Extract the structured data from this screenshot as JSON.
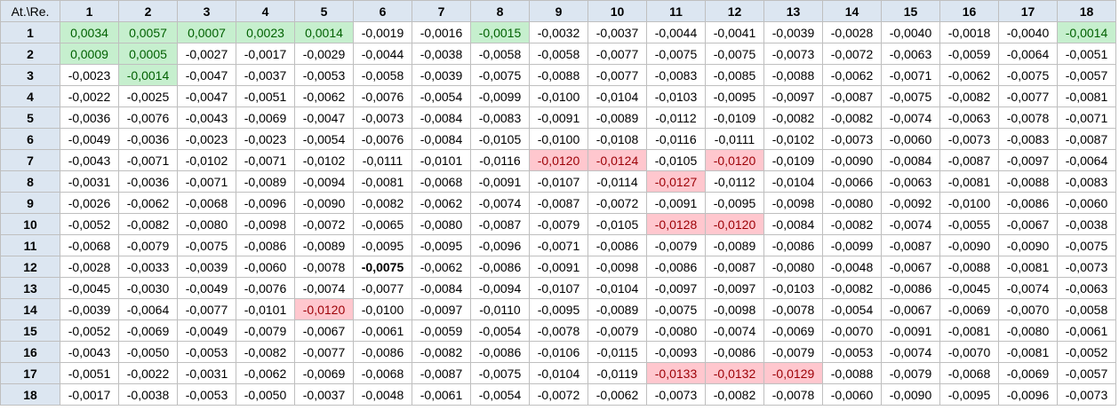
{
  "corner_label": "At.\\Re.",
  "colors": {
    "header_bg": "#dce6f1",
    "positive_bg": "#c6efce",
    "positive_text": "#006100",
    "negative_bg": "#ffc7ce",
    "negative_text": "#9c0006",
    "border": "#bfbfbf"
  },
  "columns": [
    "1",
    "2",
    "3",
    "4",
    "5",
    "6",
    "7",
    "8",
    "9",
    "10",
    "11",
    "12",
    "13",
    "14",
    "15",
    "16",
    "17",
    "18"
  ],
  "rows": [
    {
      "label": "1",
      "cells": [
        {
          "v": "0,0034",
          "h": "pos"
        },
        {
          "v": "0,0057",
          "h": "pos"
        },
        {
          "v": "0,0007",
          "h": "pos"
        },
        {
          "v": "0,0023",
          "h": "pos"
        },
        {
          "v": "0,0014",
          "h": "pos"
        },
        {
          "v": "-0,0019"
        },
        {
          "v": "-0,0016"
        },
        {
          "v": "-0,0015",
          "h": "pos"
        },
        {
          "v": "-0,0032"
        },
        {
          "v": "-0,0037"
        },
        {
          "v": "-0,0044"
        },
        {
          "v": "-0,0041"
        },
        {
          "v": "-0,0039"
        },
        {
          "v": "-0,0028"
        },
        {
          "v": "-0,0040"
        },
        {
          "v": "-0,0018"
        },
        {
          "v": "-0,0040"
        },
        {
          "v": "-0,0014",
          "h": "pos"
        }
      ]
    },
    {
      "label": "2",
      "cells": [
        {
          "v": "0,0009",
          "h": "pos"
        },
        {
          "v": "0,0005",
          "h": "pos"
        },
        {
          "v": "-0,0027"
        },
        {
          "v": "-0,0017"
        },
        {
          "v": "-0,0029"
        },
        {
          "v": "-0,0044"
        },
        {
          "v": "-0,0038"
        },
        {
          "v": "-0,0058"
        },
        {
          "v": "-0,0058"
        },
        {
          "v": "-0,0077"
        },
        {
          "v": "-0,0075"
        },
        {
          "v": "-0,0075"
        },
        {
          "v": "-0,0073"
        },
        {
          "v": "-0,0072"
        },
        {
          "v": "-0,0063"
        },
        {
          "v": "-0,0059"
        },
        {
          "v": "-0,0064"
        },
        {
          "v": "-0,0051"
        }
      ]
    },
    {
      "label": "3",
      "cells": [
        {
          "v": "-0,0023"
        },
        {
          "v": "-0,0014",
          "h": "pos"
        },
        {
          "v": "-0,0047"
        },
        {
          "v": "-0,0037"
        },
        {
          "v": "-0,0053"
        },
        {
          "v": "-0,0058"
        },
        {
          "v": "-0,0039"
        },
        {
          "v": "-0,0075"
        },
        {
          "v": "-0,0088"
        },
        {
          "v": "-0,0077"
        },
        {
          "v": "-0,0083"
        },
        {
          "v": "-0,0085"
        },
        {
          "v": "-0,0088"
        },
        {
          "v": "-0,0062"
        },
        {
          "v": "-0,0071"
        },
        {
          "v": "-0,0062"
        },
        {
          "v": "-0,0075"
        },
        {
          "v": "-0,0057"
        }
      ]
    },
    {
      "label": "4",
      "cells": [
        {
          "v": "-0,0022"
        },
        {
          "v": "-0,0025"
        },
        {
          "v": "-0,0047"
        },
        {
          "v": "-0,0051"
        },
        {
          "v": "-0,0062"
        },
        {
          "v": "-0,0076"
        },
        {
          "v": "-0,0054"
        },
        {
          "v": "-0,0099"
        },
        {
          "v": "-0,0100"
        },
        {
          "v": "-0,0104"
        },
        {
          "v": "-0,0103"
        },
        {
          "v": "-0,0095"
        },
        {
          "v": "-0,0097"
        },
        {
          "v": "-0,0087"
        },
        {
          "v": "-0,0075"
        },
        {
          "v": "-0,0082"
        },
        {
          "v": "-0,0077"
        },
        {
          "v": "-0,0081"
        }
      ]
    },
    {
      "label": "5",
      "cells": [
        {
          "v": "-0,0036"
        },
        {
          "v": "-0,0076"
        },
        {
          "v": "-0,0043"
        },
        {
          "v": "-0,0069"
        },
        {
          "v": "-0,0047"
        },
        {
          "v": "-0,0073"
        },
        {
          "v": "-0,0084"
        },
        {
          "v": "-0,0083"
        },
        {
          "v": "-0,0091"
        },
        {
          "v": "-0,0089"
        },
        {
          "v": "-0,0112"
        },
        {
          "v": "-0,0109"
        },
        {
          "v": "-0,0082"
        },
        {
          "v": "-0,0082"
        },
        {
          "v": "-0,0074"
        },
        {
          "v": "-0,0063"
        },
        {
          "v": "-0,0078"
        },
        {
          "v": "-0,0071"
        }
      ]
    },
    {
      "label": "6",
      "cells": [
        {
          "v": "-0,0049"
        },
        {
          "v": "-0,0036"
        },
        {
          "v": "-0,0023"
        },
        {
          "v": "-0,0023"
        },
        {
          "v": "-0,0054"
        },
        {
          "v": "-0,0076"
        },
        {
          "v": "-0,0084"
        },
        {
          "v": "-0,0105"
        },
        {
          "v": "-0,0100"
        },
        {
          "v": "-0,0108"
        },
        {
          "v": "-0,0116"
        },
        {
          "v": "-0,0111"
        },
        {
          "v": "-0,0102"
        },
        {
          "v": "-0,0073"
        },
        {
          "v": "-0,0060"
        },
        {
          "v": "-0,0073"
        },
        {
          "v": "-0,0083"
        },
        {
          "v": "-0,0087"
        }
      ]
    },
    {
      "label": "7",
      "cells": [
        {
          "v": "-0,0043"
        },
        {
          "v": "-0,0071"
        },
        {
          "v": "-0,0102"
        },
        {
          "v": "-0,0071"
        },
        {
          "v": "-0,0102"
        },
        {
          "v": "-0,0111"
        },
        {
          "v": "-0,0101"
        },
        {
          "v": "-0,0116"
        },
        {
          "v": "-0,0120",
          "h": "neg"
        },
        {
          "v": "-0,0124",
          "h": "neg"
        },
        {
          "v": "-0,0105"
        },
        {
          "v": "-0,0120",
          "h": "neg"
        },
        {
          "v": "-0,0109"
        },
        {
          "v": "-0,0090"
        },
        {
          "v": "-0,0084"
        },
        {
          "v": "-0,0087"
        },
        {
          "v": "-0,0097"
        },
        {
          "v": "-0,0064"
        }
      ]
    },
    {
      "label": "8",
      "cells": [
        {
          "v": "-0,0031"
        },
        {
          "v": "-0,0036"
        },
        {
          "v": "-0,0071"
        },
        {
          "v": "-0,0089"
        },
        {
          "v": "-0,0094"
        },
        {
          "v": "-0,0081"
        },
        {
          "v": "-0,0068"
        },
        {
          "v": "-0,0091"
        },
        {
          "v": "-0,0107"
        },
        {
          "v": "-0,0114"
        },
        {
          "v": "-0,0127",
          "h": "neg"
        },
        {
          "v": "-0,0112"
        },
        {
          "v": "-0,0104"
        },
        {
          "v": "-0,0066"
        },
        {
          "v": "-0,0063"
        },
        {
          "v": "-0,0081"
        },
        {
          "v": "-0,0088"
        },
        {
          "v": "-0,0083"
        }
      ]
    },
    {
      "label": "9",
      "cells": [
        {
          "v": "-0,0026"
        },
        {
          "v": "-0,0062"
        },
        {
          "v": "-0,0068"
        },
        {
          "v": "-0,0096"
        },
        {
          "v": "-0,0090"
        },
        {
          "v": "-0,0082"
        },
        {
          "v": "-0,0062"
        },
        {
          "v": "-0,0074"
        },
        {
          "v": "-0,0087"
        },
        {
          "v": "-0,0072"
        },
        {
          "v": "-0,0091"
        },
        {
          "v": "-0,0095"
        },
        {
          "v": "-0,0098"
        },
        {
          "v": "-0,0080"
        },
        {
          "v": "-0,0092"
        },
        {
          "v": "-0,0100"
        },
        {
          "v": "-0,0086"
        },
        {
          "v": "-0,0060"
        }
      ]
    },
    {
      "label": "10",
      "cells": [
        {
          "v": "-0,0052"
        },
        {
          "v": "-0,0082"
        },
        {
          "v": "-0,0080"
        },
        {
          "v": "-0,0098"
        },
        {
          "v": "-0,0072"
        },
        {
          "v": "-0,0065"
        },
        {
          "v": "-0,0080"
        },
        {
          "v": "-0,0087"
        },
        {
          "v": "-0,0079"
        },
        {
          "v": "-0,0105"
        },
        {
          "v": "-0,0128",
          "h": "neg"
        },
        {
          "v": "-0,0120",
          "h": "neg"
        },
        {
          "v": "-0,0084"
        },
        {
          "v": "-0,0082"
        },
        {
          "v": "-0,0074"
        },
        {
          "v": "-0,0055"
        },
        {
          "v": "-0,0067"
        },
        {
          "v": "-0,0038"
        }
      ]
    },
    {
      "label": "11",
      "cells": [
        {
          "v": "-0,0068"
        },
        {
          "v": "-0,0079"
        },
        {
          "v": "-0,0075"
        },
        {
          "v": "-0,0086"
        },
        {
          "v": "-0,0089"
        },
        {
          "v": "-0,0095"
        },
        {
          "v": "-0,0095"
        },
        {
          "v": "-0,0096"
        },
        {
          "v": "-0,0071"
        },
        {
          "v": "-0,0086"
        },
        {
          "v": "-0,0079"
        },
        {
          "v": "-0,0089"
        },
        {
          "v": "-0,0086"
        },
        {
          "v": "-0,0099"
        },
        {
          "v": "-0,0087"
        },
        {
          "v": "-0,0090"
        },
        {
          "v": "-0,0090"
        },
        {
          "v": "-0,0075"
        }
      ]
    },
    {
      "label": "12",
      "cells": [
        {
          "v": "-0,0028"
        },
        {
          "v": "-0,0033"
        },
        {
          "v": "-0,0039"
        },
        {
          "v": "-0,0060"
        },
        {
          "v": "-0,0078"
        },
        {
          "v": "-0,0075",
          "b": true
        },
        {
          "v": "-0,0062"
        },
        {
          "v": "-0,0086"
        },
        {
          "v": "-0,0091"
        },
        {
          "v": "-0,0098"
        },
        {
          "v": "-0,0086"
        },
        {
          "v": "-0,0087"
        },
        {
          "v": "-0,0080"
        },
        {
          "v": "-0,0048"
        },
        {
          "v": "-0,0067"
        },
        {
          "v": "-0,0088"
        },
        {
          "v": "-0,0081"
        },
        {
          "v": "-0,0073"
        }
      ]
    },
    {
      "label": "13",
      "cells": [
        {
          "v": "-0,0045"
        },
        {
          "v": "-0,0030"
        },
        {
          "v": "-0,0049"
        },
        {
          "v": "-0,0076"
        },
        {
          "v": "-0,0074"
        },
        {
          "v": "-0,0077"
        },
        {
          "v": "-0,0084"
        },
        {
          "v": "-0,0094"
        },
        {
          "v": "-0,0107"
        },
        {
          "v": "-0,0104"
        },
        {
          "v": "-0,0097"
        },
        {
          "v": "-0,0097"
        },
        {
          "v": "-0,0103"
        },
        {
          "v": "-0,0082"
        },
        {
          "v": "-0,0086"
        },
        {
          "v": "-0,0045"
        },
        {
          "v": "-0,0074"
        },
        {
          "v": "-0,0063"
        }
      ]
    },
    {
      "label": "14",
      "cells": [
        {
          "v": "-0,0039"
        },
        {
          "v": "-0,0064"
        },
        {
          "v": "-0,0077"
        },
        {
          "v": "-0,0101"
        },
        {
          "v": "-0,0120",
          "h": "neg"
        },
        {
          "v": "-0,0100"
        },
        {
          "v": "-0,0097"
        },
        {
          "v": "-0,0110"
        },
        {
          "v": "-0,0095"
        },
        {
          "v": "-0,0089"
        },
        {
          "v": "-0,0075"
        },
        {
          "v": "-0,0098"
        },
        {
          "v": "-0,0078"
        },
        {
          "v": "-0,0054"
        },
        {
          "v": "-0,0067"
        },
        {
          "v": "-0,0069"
        },
        {
          "v": "-0,0070"
        },
        {
          "v": "-0,0058"
        }
      ]
    },
    {
      "label": "15",
      "cells": [
        {
          "v": "-0,0052"
        },
        {
          "v": "-0,0069"
        },
        {
          "v": "-0,0049"
        },
        {
          "v": "-0,0079"
        },
        {
          "v": "-0,0067"
        },
        {
          "v": "-0,0061"
        },
        {
          "v": "-0,0059"
        },
        {
          "v": "-0,0054"
        },
        {
          "v": "-0,0078"
        },
        {
          "v": "-0,0079"
        },
        {
          "v": "-0,0080"
        },
        {
          "v": "-0,0074"
        },
        {
          "v": "-0,0069"
        },
        {
          "v": "-0,0070"
        },
        {
          "v": "-0,0091"
        },
        {
          "v": "-0,0081"
        },
        {
          "v": "-0,0080"
        },
        {
          "v": "-0,0061"
        }
      ]
    },
    {
      "label": "16",
      "cells": [
        {
          "v": "-0,0043"
        },
        {
          "v": "-0,0050"
        },
        {
          "v": "-0,0053"
        },
        {
          "v": "-0,0082"
        },
        {
          "v": "-0,0077"
        },
        {
          "v": "-0,0086"
        },
        {
          "v": "-0,0082"
        },
        {
          "v": "-0,0086"
        },
        {
          "v": "-0,0106"
        },
        {
          "v": "-0,0115"
        },
        {
          "v": "-0,0093"
        },
        {
          "v": "-0,0086"
        },
        {
          "v": "-0,0079"
        },
        {
          "v": "-0,0053"
        },
        {
          "v": "-0,0074"
        },
        {
          "v": "-0,0070"
        },
        {
          "v": "-0,0081"
        },
        {
          "v": "-0,0052"
        }
      ]
    },
    {
      "label": "17",
      "cells": [
        {
          "v": "-0,0051"
        },
        {
          "v": "-0,0022"
        },
        {
          "v": "-0,0031"
        },
        {
          "v": "-0,0062"
        },
        {
          "v": "-0,0069"
        },
        {
          "v": "-0,0068"
        },
        {
          "v": "-0,0087"
        },
        {
          "v": "-0,0075"
        },
        {
          "v": "-0,0104"
        },
        {
          "v": "-0,0119"
        },
        {
          "v": "-0,0133",
          "h": "neg"
        },
        {
          "v": "-0,0132",
          "h": "neg"
        },
        {
          "v": "-0,0129",
          "h": "neg"
        },
        {
          "v": "-0,0088"
        },
        {
          "v": "-0,0079"
        },
        {
          "v": "-0,0068"
        },
        {
          "v": "-0,0069"
        },
        {
          "v": "-0,0057"
        }
      ]
    },
    {
      "label": "18",
      "cells": [
        {
          "v": "-0,0017"
        },
        {
          "v": "-0,0038"
        },
        {
          "v": "-0,0053"
        },
        {
          "v": "-0,0050"
        },
        {
          "v": "-0,0037"
        },
        {
          "v": "-0,0048"
        },
        {
          "v": "-0,0061"
        },
        {
          "v": "-0,0054"
        },
        {
          "v": "-0,0072"
        },
        {
          "v": "-0,0062"
        },
        {
          "v": "-0,0073"
        },
        {
          "v": "-0,0082"
        },
        {
          "v": "-0,0078"
        },
        {
          "v": "-0,0060"
        },
        {
          "v": "-0,0090"
        },
        {
          "v": "-0,0095"
        },
        {
          "v": "-0,0096"
        },
        {
          "v": "-0,0073"
        }
      ]
    }
  ]
}
